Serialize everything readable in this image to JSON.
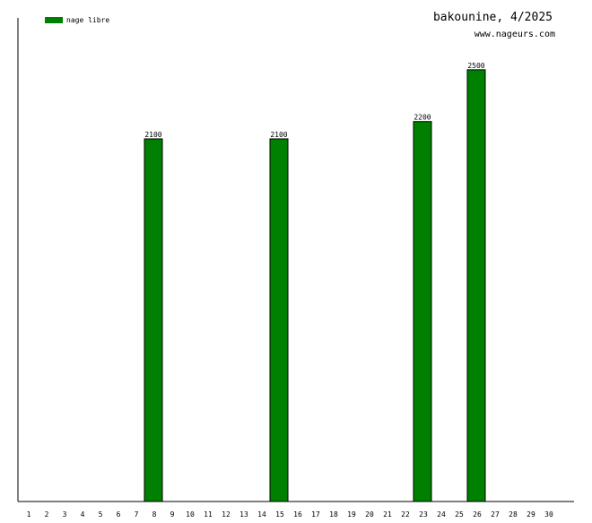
{
  "chart_data": {
    "type": "bar",
    "title": "bakounine, 4/2025",
    "subtitle": "www.nageurs.com",
    "categories": [
      "1",
      "2",
      "3",
      "4",
      "5",
      "6",
      "7",
      "8",
      "9",
      "10",
      "11",
      "12",
      "13",
      "14",
      "15",
      "16",
      "17",
      "18",
      "19",
      "20",
      "21",
      "22",
      "23",
      "24",
      "25",
      "26",
      "27",
      "28",
      "29",
      "30"
    ],
    "series": [
      {
        "name": "nage libre",
        "color": "#008000",
        "values": [
          null,
          null,
          null,
          null,
          null,
          null,
          null,
          2100,
          null,
          null,
          null,
          null,
          null,
          null,
          2100,
          null,
          null,
          null,
          null,
          null,
          null,
          null,
          2200,
          null,
          null,
          2500,
          null,
          null,
          null,
          null
        ]
      }
    ],
    "ylim": [
      0,
      2800
    ]
  }
}
